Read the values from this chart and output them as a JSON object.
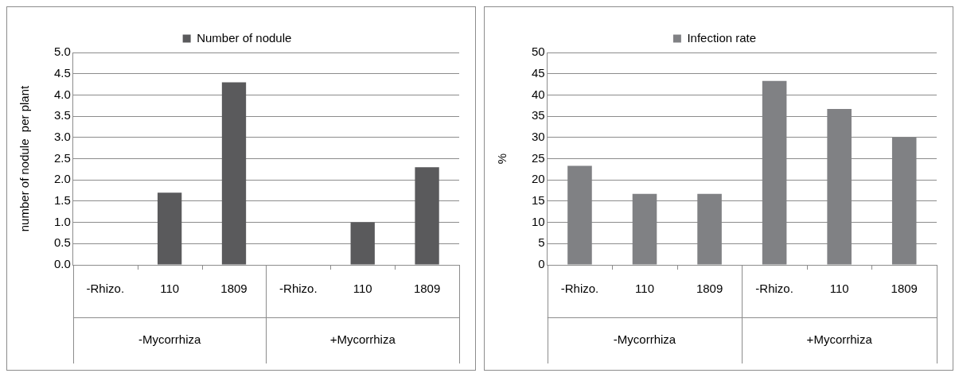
{
  "chart_data": [
    {
      "type": "bar",
      "categories": [
        "-Rhizo.",
        "110",
        "1809",
        "-Rhizo.",
        "110",
        "1809"
      ],
      "ylabel": "number of nodule  per plant",
      "ylim": [
        0,
        5
      ],
      "yticks": [
        {
          "value": 0,
          "label": "0.0"
        },
        {
          "value": 0.5,
          "label": "0.5"
        },
        {
          "value": 1,
          "label": "1.0"
        },
        {
          "value": 1.5,
          "label": "1.5"
        },
        {
          "value": 2,
          "label": "2.0"
        },
        {
          "value": 2.5,
          "label": "2.5"
        },
        {
          "value": 3,
          "label": "3.0"
        },
        {
          "value": 3.5,
          "label": "3.5"
        },
        {
          "value": 4,
          "label": "4.0"
        },
        {
          "value": 4.5,
          "label": "4.5"
        },
        {
          "value": 5,
          "label": "5.0"
        }
      ],
      "grid": "y",
      "legend": "top",
      "series": [
        {
          "name": "Number of nodule",
          "color": "#5a5a5c",
          "values": [
            0,
            1.7,
            4.3,
            0,
            1.0,
            2.3
          ]
        }
      ],
      "annotations": [
        "-Mycorrhiza",
        "+Mycorrhiza"
      ]
    },
    {
      "type": "bar",
      "categories": [
        "-Rhizo.",
        "110",
        "1809",
        "-Rhizo.",
        "110",
        "1809"
      ],
      "ylabel": "%",
      "ylim": [
        0,
        50
      ],
      "yticks": [
        0,
        5,
        10,
        15,
        20,
        25,
        30,
        35,
        40,
        45,
        50
      ],
      "grid": "y",
      "legend": "top",
      "series": [
        {
          "name": "Infection rate",
          "color": "#808184",
          "values": [
            23.3,
            16.7,
            16.7,
            43.3,
            36.7,
            30
          ]
        }
      ],
      "annotations": [
        "-Mycorrhiza",
        "+Mycorrhiza"
      ]
    }
  ]
}
